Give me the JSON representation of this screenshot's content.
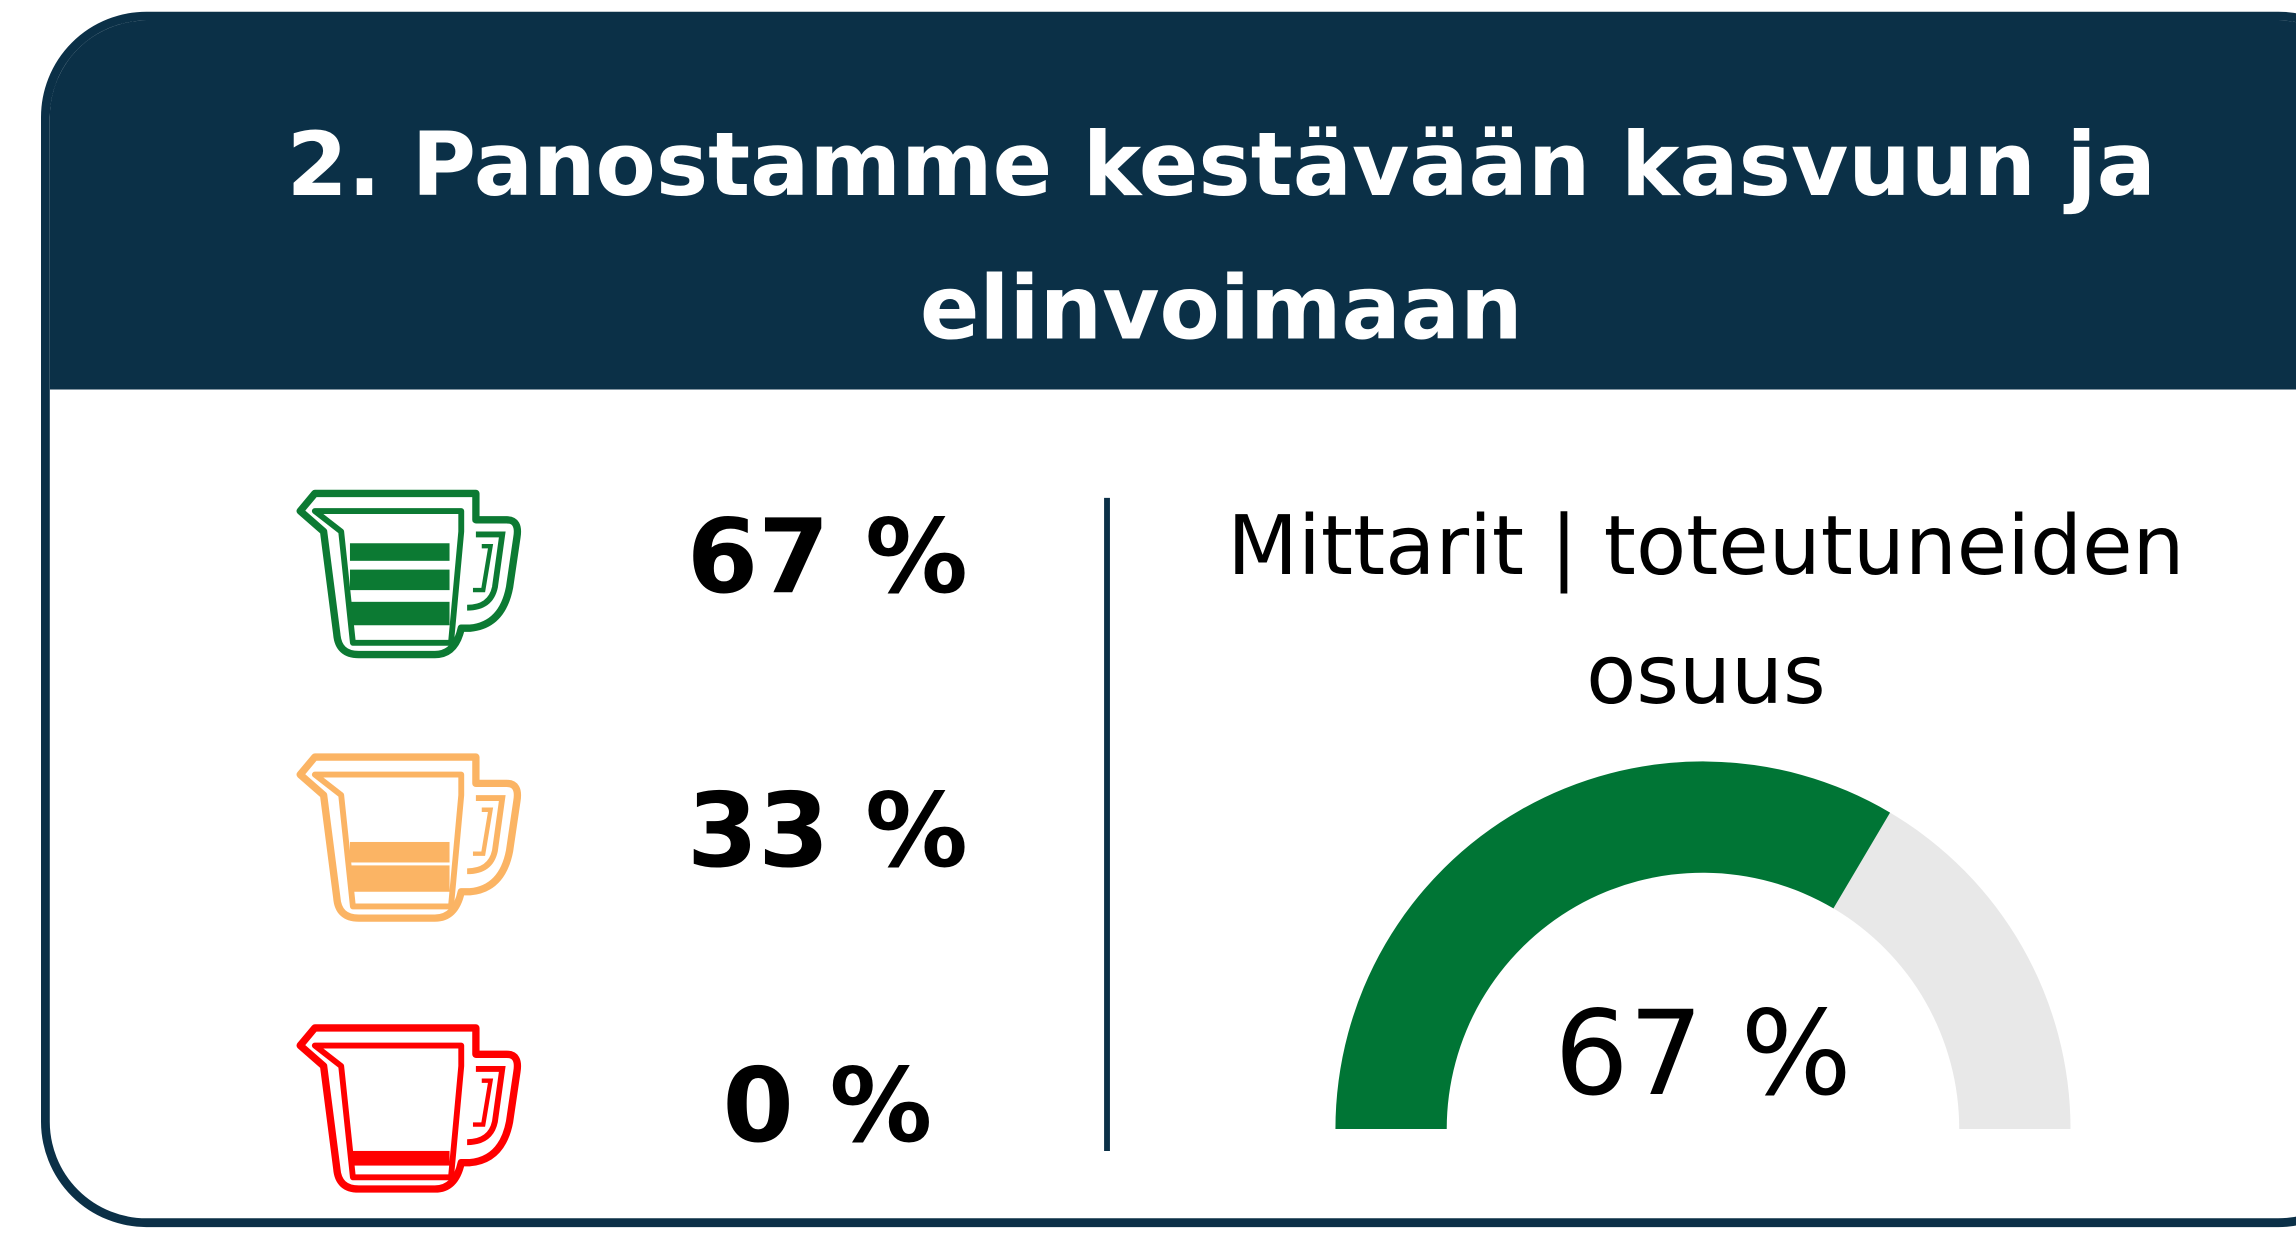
{
  "header": {
    "title": "2. Panostamme kestävään kasvuun ja elinvoimaan"
  },
  "stats": [
    {
      "label": "67 %",
      "color": "#0c7a33"
    },
    {
      "label": "33 %",
      "color": "#fbb464"
    },
    {
      "label": "0 %",
      "color": "#ff0000"
    }
  ],
  "chart_data": {
    "type": "gauge",
    "title": "Mittarit | toteutuneiden osuus",
    "value": 67,
    "value_label": "67 %",
    "ylim": [
      0,
      100
    ],
    "color": "#007535",
    "track_color": "#e8e8e8"
  }
}
